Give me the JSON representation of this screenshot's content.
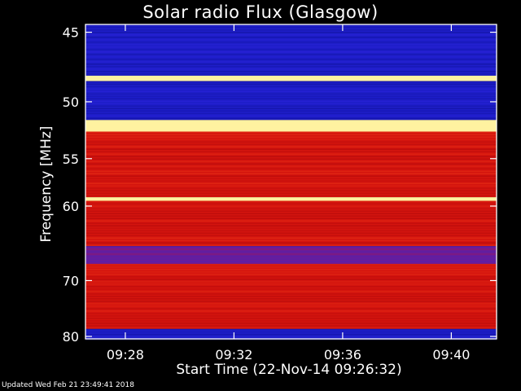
{
  "chart_data": {
    "type": "heatmap",
    "title": "Solar radio Flux (Glasgow)",
    "xlabel": "Start Time (22-Nov-14 09:26:32)",
    "ylabel": "Frequency [MHz]",
    "x_range_minutes": [
      "09:26:32",
      "09:41:40"
    ],
    "x_ticks": [
      "09:28",
      "09:32",
      "09:36",
      "09:40"
    ],
    "y_range_mhz": [
      44.5,
      80.5
    ],
    "y_ticks": [
      45,
      50,
      55,
      60,
      70,
      80
    ],
    "y_scale": "reciprocal",
    "colormap": "blue-to-red-to-yellow",
    "bands_mhz": [
      {
        "from": 44.5,
        "to": 48.0,
        "intensity": "low"
      },
      {
        "from": 48.0,
        "to": 48.4,
        "intensity": "very high"
      },
      {
        "from": 48.4,
        "to": 51.5,
        "intensity": "low"
      },
      {
        "from": 51.5,
        "to": 52.5,
        "intensity": "very high"
      },
      {
        "from": 52.5,
        "to": 59.0,
        "intensity": "high"
      },
      {
        "from": 59.0,
        "to": 59.4,
        "intensity": "very high"
      },
      {
        "from": 59.4,
        "to": 65.0,
        "intensity": "high"
      },
      {
        "from": 65.0,
        "to": 67.5,
        "intensity": "medium"
      },
      {
        "from": 67.5,
        "to": 78.5,
        "intensity": "high"
      },
      {
        "from": 78.5,
        "to": 80.5,
        "intensity": "low"
      }
    ]
  },
  "footer": "Updated Wed Feb 21 23:49:41 2018",
  "colors": {
    "background": "#000000",
    "axis": "#ffffff",
    "low": "#1414c8",
    "high": "#dc1010",
    "peak": "#fff09a"
  }
}
